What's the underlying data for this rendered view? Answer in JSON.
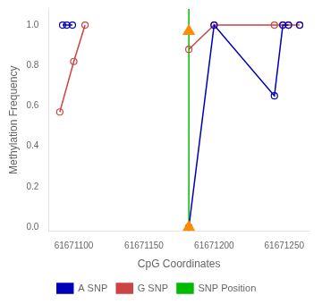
{
  "chart_data": {
    "type": "line",
    "xlabel": "CpG Coordinates",
    "ylabel": "Methylation Frequency",
    "xlim": [
      61671082,
      61671268
    ],
    "ylim": [
      -0.02,
      1.08
    ],
    "xticks": [
      61671100,
      61671150,
      61671200,
      61671250
    ],
    "yticks": [
      {
        "value": 0.0,
        "label": "0.0"
      },
      0.2,
      0.4,
      0.6,
      0.8,
      {
        "value": 1.0,
        "label": "1.0"
      }
    ],
    "grid": false,
    "legend": "bottom",
    "series": [
      {
        "name": "A SNP",
        "color": "#0000bb",
        "marker": "circle",
        "line_style": "solid",
        "x": [
          61671092,
          61671095,
          61671099,
          null,
          61671182,
          61671200,
          61671243,
          61671249,
          61671253,
          null,
          61671261
        ],
        "values": [
          1.0,
          1.0,
          1.0,
          null,
          0.0,
          1.0,
          0.65,
          1.0,
          1.0,
          null,
          1.0
        ]
      },
      {
        "name": "G SNP",
        "color": "#cc4444",
        "marker": "circle",
        "line_style": "solid",
        "x": [
          61671090,
          61671100,
          61671108,
          null,
          61671182,
          61671200,
          61671243,
          61671249,
          61671253,
          61671261
        ],
        "values": [
          0.57,
          0.82,
          1.0,
          null,
          0.88,
          1.0,
          1.0,
          1.0,
          1.0,
          1.0
        ]
      },
      {
        "name": "SNP Position",
        "type": "vline",
        "color": "#00bb00",
        "line_style": "solid",
        "x": [
          61671182
        ]
      },
      {
        "type": "scatter",
        "marker": "triangle",
        "color": "#ff8c00",
        "x": [
          61671182,
          61671182
        ],
        "values": [
          0.97,
          0.0
        ]
      }
    ]
  }
}
